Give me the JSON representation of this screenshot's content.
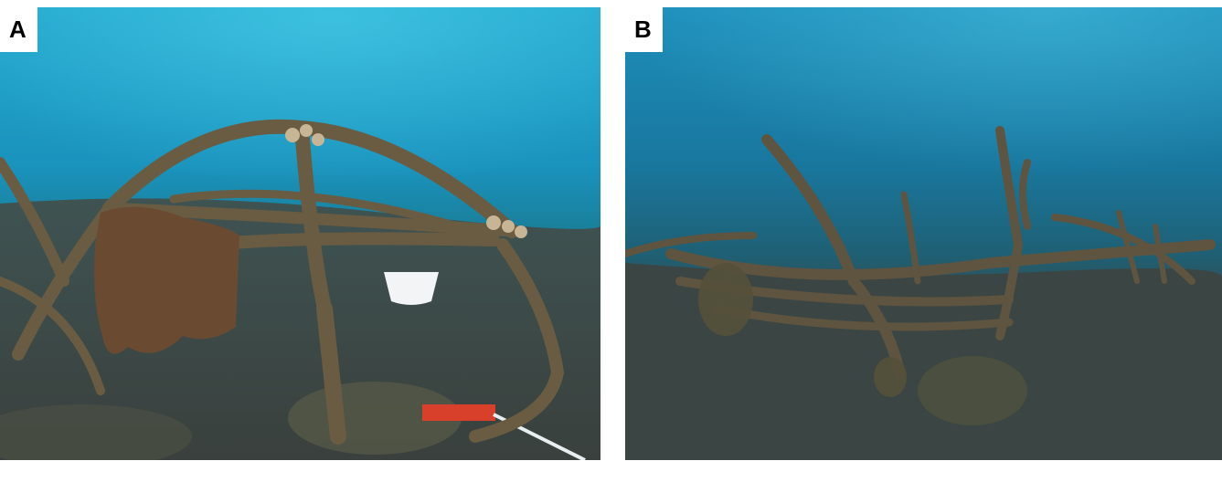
{
  "figure": {
    "panels": [
      {
        "label": "A",
        "content": "underwater-photo-dome-frame"
      },
      {
        "label": "B",
        "content": "underwater-photo-collapsed-frame"
      }
    ]
  },
  "colors": {
    "background": "#ffffff",
    "water_top": "#1c9bc4",
    "water_mid": "#1585ad",
    "seabed": "#3f4a48",
    "encrusted_metal": "#5e5440",
    "algae": "#6b4a32"
  }
}
